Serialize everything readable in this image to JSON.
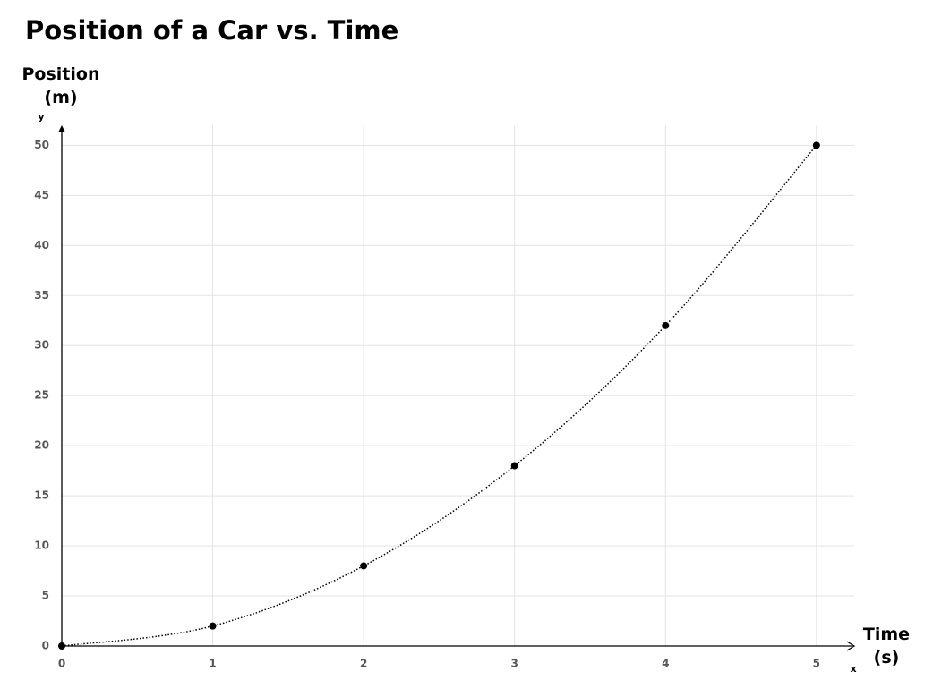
{
  "chart_data": {
    "type": "scatter",
    "title": "Position of a Car vs. Time",
    "ylabel": "Position (m)",
    "xlabel": "Time (s)",
    "y_axis_symbol": "y",
    "x_axis_symbol": "x",
    "x": [
      0,
      1,
      2,
      3,
      4,
      5
    ],
    "series": [
      {
        "name": null,
        "color": "#000000",
        "values": [
          0,
          2,
          8,
          18,
          32,
          50
        ]
      }
    ],
    "xlim": [
      0,
      5.25
    ],
    "ylim": [
      0,
      52
    ],
    "xticks": [
      0,
      1,
      2,
      3,
      4,
      5
    ],
    "yticks": [
      0,
      5,
      10,
      15,
      20,
      25,
      30,
      35,
      40,
      45,
      50
    ],
    "grid": true,
    "curve": "dotted"
  }
}
